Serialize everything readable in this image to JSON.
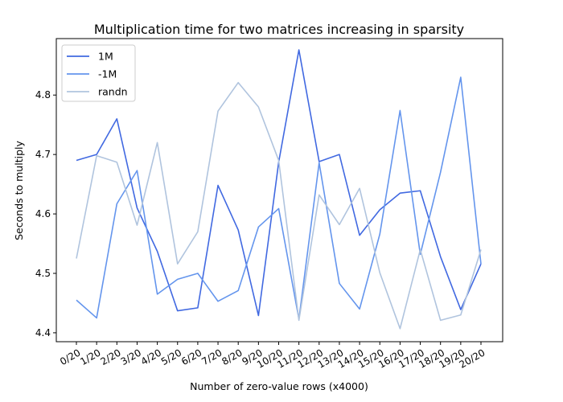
{
  "chart_data": {
    "type": "line",
    "title": "Multiplication time for two matrices increasing in sparsity",
    "xlabel": "Number of zero-value rows (x4000)",
    "ylabel": "Seconds to multiply",
    "categories": [
      "0/20",
      "1/20",
      "2/20",
      "3/20",
      "4/20",
      "5/20",
      "6/20",
      "7/20",
      "8/20",
      "9/20",
      "10/20",
      "11/20",
      "12/20",
      "13/20",
      "14/20",
      "15/20",
      "16/20",
      "17/20",
      "18/20",
      "19/20",
      "20/20"
    ],
    "yticks": [
      "4.4",
      "4.5",
      "4.6",
      "4.7",
      "4.8"
    ],
    "ylim": [
      4.385,
      4.895
    ],
    "grid": false,
    "legend_position": "top-left",
    "series": [
      {
        "name": "1M",
        "color": "#4169e1",
        "values": [
          4.69,
          4.7,
          4.76,
          4.61,
          4.537,
          4.437,
          4.442,
          4.648,
          4.573,
          4.429,
          4.687,
          4.876,
          4.688,
          4.7,
          4.564,
          4.607,
          4.635,
          4.639,
          4.528,
          4.439,
          4.516
        ]
      },
      {
        "name": "-1M",
        "color": "#6495ed",
        "values": [
          4.455,
          4.425,
          4.617,
          4.673,
          4.465,
          4.49,
          4.5,
          4.453,
          4.471,
          4.578,
          4.609,
          4.423,
          4.686,
          4.483,
          4.44,
          4.566,
          4.774,
          4.532,
          4.67,
          4.83,
          4.516
        ]
      },
      {
        "name": "randn",
        "color": "#b0c4de",
        "values": [
          4.525,
          4.698,
          4.687,
          4.581,
          4.72,
          4.516,
          4.57,
          4.773,
          4.821,
          4.78,
          4.69,
          4.421,
          4.632,
          4.582,
          4.643,
          4.501,
          4.407,
          4.54,
          4.421,
          4.43,
          4.54
        ]
      }
    ]
  }
}
